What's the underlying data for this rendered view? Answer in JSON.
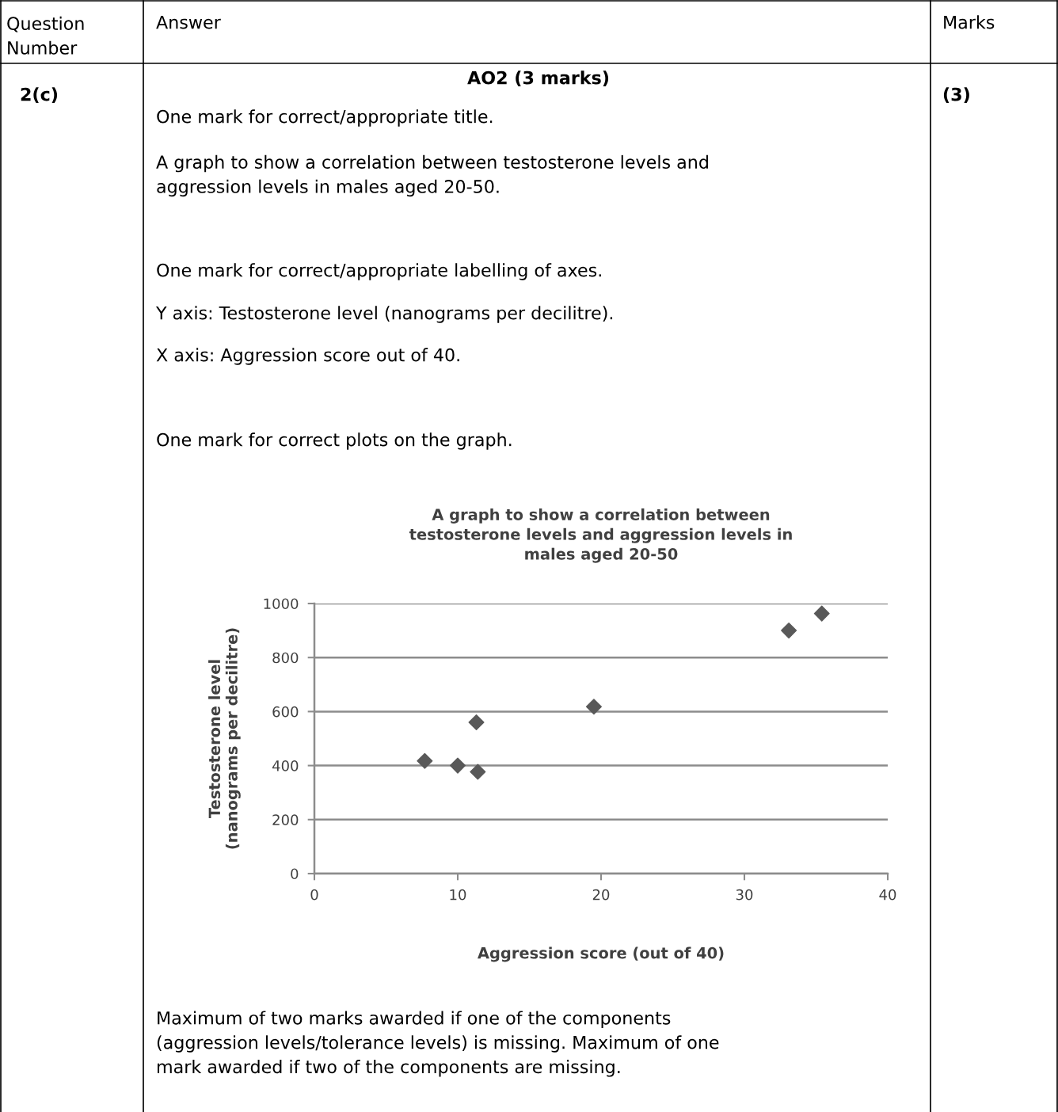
{
  "chart_data": {
    "type": "scatter",
    "title": "A graph to show a correlation between\ntestosterone levels and aggression levels in\nmales aged 20-50",
    "xlabel": "Aggression score (out of 40)",
    "ylabel": "Testosterone level\n(nanograms per decilitre)",
    "x": [
      7.7,
      10,
      11.3,
      11.4,
      19.5,
      33.1,
      35.4
    ],
    "values": [
      417,
      400,
      560,
      377,
      618,
      900,
      963
    ],
    "color": "#595959",
    "marker": "diamond",
    "xlim": [
      0,
      40
    ],
    "xticks": [
      0,
      10,
      20,
      30,
      40
    ],
    "ylim": [
      0,
      1000
    ],
    "yticks": [
      0,
      200,
      400,
      600,
      800,
      1000
    ],
    "grid": "y",
    "legend": false,
    "annotations": [
      "Question\nNumber",
      "Answer",
      "Marks",
      "2(c)",
      "AO2 (3 marks)",
      "(3)",
      "One mark for correct/appropriate title.",
      "A graph to show a correlation between testosterone levels and\naggression levels in males aged 20-50.",
      "One mark for correct/appropriate labelling of axes.",
      "Y axis: Testosterone level (nanograms per decilitre).",
      "X axis: Aggression score out of 40.",
      "One mark for correct plots on the graph.",
      "Maximum of two marks awarded if one of the components\n(aggression levels/tolerance levels) is missing. Maximum of one\nmark awarded if two of the components are missing."
    ]
  }
}
